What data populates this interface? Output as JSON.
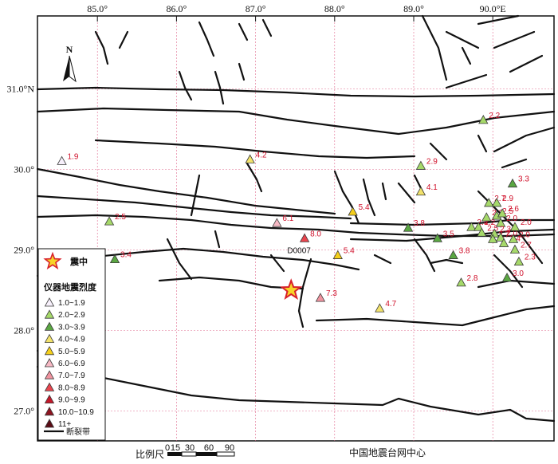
{
  "axes": {
    "lon_ticks": [
      {
        "value": 85.0,
        "label": "85.0°"
      },
      {
        "value": 86.0,
        "label": "86.0°"
      },
      {
        "value": 87.0,
        "label": "87.0°"
      },
      {
        "value": 88.0,
        "label": "88.0°"
      },
      {
        "value": 89.0,
        "label": "89.0°"
      },
      {
        "value": 90.0,
        "label": "90.0°E"
      }
    ],
    "lat_ticks": [
      {
        "value": 31.0,
        "label": "31.0°N"
      },
      {
        "value": 30.0,
        "label": "30.0°"
      },
      {
        "value": 29.0,
        "label": "29.0°"
      },
      {
        "value": 28.0,
        "label": "28.0°"
      },
      {
        "value": 27.0,
        "label": "27.0°"
      }
    ]
  },
  "north_arrow": {
    "label": "N"
  },
  "epicenter": {
    "lon": 87.45,
    "lat": 28.5
  },
  "stations": [
    {
      "lon": 84.55,
      "lat": 30.1,
      "intensity": 1.9,
      "label": "1.9"
    },
    {
      "lon": 85.15,
      "lat": 29.35,
      "intensity": 2.5,
      "label": "2.5"
    },
    {
      "lon": 85.22,
      "lat": 28.88,
      "intensity": 3.4,
      "label": "3.4"
    },
    {
      "lon": 86.93,
      "lat": 30.12,
      "intensity": 4.2,
      "label": "4.2"
    },
    {
      "lon": 87.27,
      "lat": 29.33,
      "intensity": 6.1,
      "label": "6.1"
    },
    {
      "lon": 87.62,
      "lat": 29.14,
      "intensity": 8.0,
      "label": "8.0",
      "code": "D0007"
    },
    {
      "lon": 88.04,
      "lat": 28.93,
      "intensity": 5.4,
      "label": "5.4"
    },
    {
      "lon": 87.82,
      "lat": 28.4,
      "intensity": 7.3,
      "label": "7.3"
    },
    {
      "lon": 88.23,
      "lat": 29.47,
      "intensity": 5.4,
      "label": "5.4"
    },
    {
      "lon": 88.57,
      "lat": 28.27,
      "intensity": 4.7,
      "label": "4.7"
    },
    {
      "lon": 88.93,
      "lat": 29.27,
      "intensity": 3.8,
      "label": "3.8"
    },
    {
      "lon": 89.09,
      "lat": 30.04,
      "intensity": 2.9,
      "label": "2.9"
    },
    {
      "lon": 89.09,
      "lat": 29.72,
      "intensity": 4.1,
      "label": "4.1"
    },
    {
      "lon": 89.3,
      "lat": 29.14,
      "intensity": 3.5,
      "label": "3.5"
    },
    {
      "lon": 89.5,
      "lat": 28.93,
      "intensity": 3.8,
      "label": "3.8"
    },
    {
      "lon": 89.6,
      "lat": 28.59,
      "intensity": 2.8,
      "label": "2.8"
    },
    {
      "lon": 89.88,
      "lat": 30.61,
      "intensity": 2.2,
      "label": "2.2"
    },
    {
      "lon": 89.73,
      "lat": 29.28,
      "intensity": 2.4,
      "label": "2.4"
    },
    {
      "lon": 89.82,
      "lat": 29.28,
      "intensity": 2.2,
      "label": "2.2"
    },
    {
      "lon": 89.86,
      "lat": 29.21,
      "intensity": 2.5,
      "label": "2.5"
    },
    {
      "lon": 89.92,
      "lat": 29.4,
      "intensity": 2.3,
      "label": "2.3"
    },
    {
      "lon": 89.95,
      "lat": 29.58,
      "intensity": 2.7,
      "label": "2.7"
    },
    {
      "lon": 90.05,
      "lat": 29.58,
      "intensity": 2.9,
      "label": "2.9"
    },
    {
      "lon": 90.05,
      "lat": 29.42,
      "intensity": 2.5,
      "label": "2.5"
    },
    {
      "lon": 90.12,
      "lat": 29.45,
      "intensity": 2.6,
      "label": "2.6"
    },
    {
      "lon": 90.1,
      "lat": 29.33,
      "intensity": 2.0,
      "label": "2.0"
    },
    {
      "lon": 90.02,
      "lat": 29.2,
      "intensity": 2.3,
      "label": "2.3"
    },
    {
      "lon": 90.0,
      "lat": 29.13,
      "intensity": 2.7,
      "label": "2.7"
    },
    {
      "lon": 90.1,
      "lat": 29.15,
      "intensity": 2.0,
      "label": "2.0"
    },
    {
      "lon": 90.14,
      "lat": 29.08,
      "intensity": 2.4,
      "label": "2.4"
    },
    {
      "lon": 90.28,
      "lat": 29.28,
      "intensity": 2.0,
      "label": "2.0"
    },
    {
      "lon": 90.26,
      "lat": 29.13,
      "intensity": 2.0,
      "label": "2.0"
    },
    {
      "lon": 90.28,
      "lat": 29.0,
      "intensity": 2.7,
      "label": "2.7"
    },
    {
      "lon": 90.33,
      "lat": 28.85,
      "intensity": 2.3,
      "label": "2.3"
    },
    {
      "lon": 90.25,
      "lat": 29.82,
      "intensity": 3.3,
      "label": "3.3"
    },
    {
      "lon": 90.18,
      "lat": 28.65,
      "intensity": 3.0,
      "label": "3.0"
    }
  ],
  "legend": {
    "epicenter_label": "震中",
    "title": "仪器地震烈度",
    "classes": [
      {
        "label": "1.0~1.9",
        "color": "#f7f0fb"
      },
      {
        "label": "2.0~2.9",
        "color": "#a6d96a"
      },
      {
        "label": "3.0~3.9",
        "color": "#5aa642"
      },
      {
        "label": "4.0~4.9",
        "color": "#f2e26b"
      },
      {
        "label": "5.0~5.9",
        "color": "#f5cf1a"
      },
      {
        "label": "6.0~6.9",
        "color": "#f6b8c3"
      },
      {
        "label": "7.0~7.9",
        "color": "#f0939f"
      },
      {
        "label": "8.0~8.9",
        "color": "#e8454e"
      },
      {
        "label": "9.0~9.9",
        "color": "#c4182a"
      },
      {
        "label": "10.0~10.9",
        "color": "#8e1420"
      },
      {
        "label": "11+",
        "color": "#5a0b14"
      }
    ],
    "fault_label": "断裂带"
  },
  "scale_bar": {
    "label": "比例尺",
    "ticks": [
      "0",
      "15",
      "30",
      "60",
      "90"
    ]
  },
  "credit": "中国地震台网中心"
}
